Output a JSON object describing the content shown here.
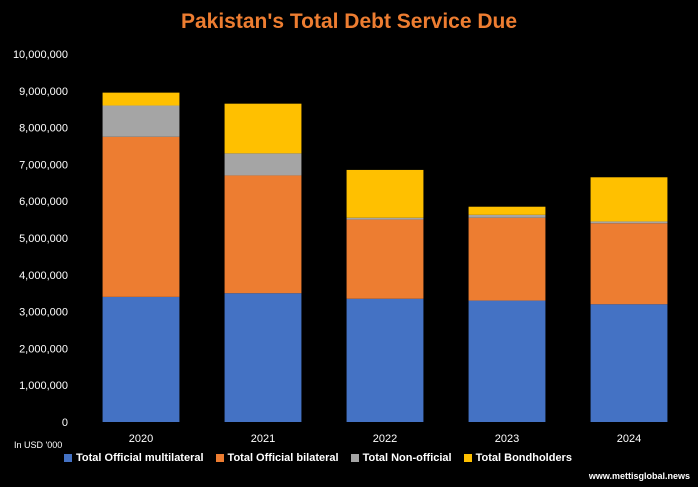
{
  "chart_data": {
    "type": "bar",
    "stacked": true,
    "title": "Pakistan's Total Debt Service Due",
    "unit_note": "In USD '000",
    "source": "www.mettisglobal.news",
    "categories": [
      "2020",
      "2021",
      "2022",
      "2023",
      "2024"
    ],
    "ylim": [
      0,
      10000000
    ],
    "yticks": [
      "0",
      "1,000,000",
      "2,000,000",
      "3,000,000",
      "4,000,000",
      "5,000,000",
      "6,000,000",
      "7,000,000",
      "8,000,000",
      "9,000,000",
      "10,000,000"
    ],
    "legend_position": "bottom",
    "grid": false,
    "series": [
      {
        "name": "Total Official multilateral",
        "color": "#4472C4",
        "values": [
          3400000,
          3500000,
          3350000,
          3300000,
          3200000
        ]
      },
      {
        "name": "Total Official bilateral",
        "color": "#ED7D31",
        "values": [
          4350000,
          3200000,
          2150000,
          2250000,
          2200000
        ]
      },
      {
        "name": "Total Non-official",
        "color": "#A5A5A5",
        "values": [
          850000,
          600000,
          50000,
          80000,
          50000
        ]
      },
      {
        "name": "Total Bondholders",
        "color": "#FFC000",
        "values": [
          350000,
          1350000,
          1300000,
          220000,
          1200000
        ]
      }
    ]
  }
}
